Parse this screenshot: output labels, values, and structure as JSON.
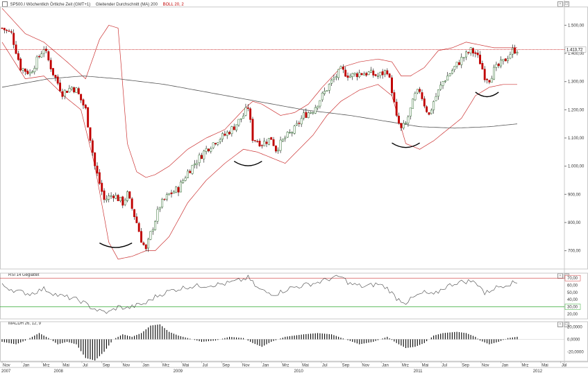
{
  "main_pane": {
    "symbol_label": "SP500.I Wöchentlich Örtliche Zeit (GMT+1)",
    "ma_label": "Gleitender Durchschnitt (MA) 200",
    "boll_label": "BOLL 20, 2",
    "last_price_label": "1.413,72"
  },
  "rsi_pane": {
    "label": "RSI 14 Geglättet",
    "upper_level_label": "70,00",
    "lower_level_label": "30,00"
  },
  "macd_pane": {
    "label": "MACDH 26, 12, 9"
  },
  "colors": {
    "up_candle": "#ffffff",
    "down_candle": "#c00000",
    "candle_outline": "#000000",
    "upper_band": "#cc3333",
    "lower_band": "#cc3333",
    "ma200": "#555555",
    "price_line": "#c00000",
    "rsi_line": "#444444",
    "rsi_upper": "#cc3333",
    "rsi_lower": "#33aa33",
    "annotation": "#000000"
  },
  "chart_data": [
    {
      "type": "candlestick",
      "title": "SP500.I Wöchentlich",
      "yaxis_ticks": [
        "1.500,00",
        "1.400,00",
        "1.300,00",
        "1.200,00",
        "1.100,00",
        "1.000,00",
        "900,00",
        "800,00",
        "700,00"
      ],
      "ylim": [
        640,
        1560
      ],
      "x_month_labels": [
        "Nov",
        "Jan",
        "Mrz",
        "Mai",
        "Jul",
        "Sep",
        "Nov",
        "Jan",
        "Mrz",
        "Mai",
        "Jul",
        "Sep",
        "Nov",
        "Jan",
        "Mrz",
        "Mai",
        "Jul",
        "Sep",
        "Nov",
        "Jan",
        "Mrz",
        "Mai",
        "Jul",
        "Sep",
        "Nov",
        "Jan",
        "Mrz",
        "Mai",
        "Jul"
      ],
      "x_year_labels": [
        "2007",
        "2008",
        "2009",
        "2010",
        "2011",
        "2012"
      ],
      "close_anchors": [
        [
          0,
          1490
        ],
        [
          4,
          1470
        ],
        [
          8,
          1350
        ],
        [
          12,
          1330
        ],
        [
          16,
          1390
        ],
        [
          18,
          1420
        ],
        [
          22,
          1330
        ],
        [
          26,
          1260
        ],
        [
          30,
          1280
        ],
        [
          32,
          1270
        ],
        [
          36,
          1200
        ],
        [
          40,
          1000
        ],
        [
          44,
          880
        ],
        [
          48,
          900
        ],
        [
          52,
          870
        ],
        [
          54,
          900
        ],
        [
          58,
          800
        ],
        [
          60,
          740
        ],
        [
          62,
          700
        ],
        [
          64,
          760
        ],
        [
          68,
          860
        ],
        [
          72,
          900
        ],
        [
          76,
          920
        ],
        [
          80,
          980
        ],
        [
          84,
          1020
        ],
        [
          88,
          1060
        ],
        [
          92,
          1090
        ],
        [
          96,
          1110
        ],
        [
          100,
          1140
        ],
        [
          104,
          1180
        ],
        [
          106,
          1210
        ],
        [
          108,
          1100
        ],
        [
          112,
          1080
        ],
        [
          116,
          1100
        ],
        [
          118,
          1060
        ],
        [
          122,
          1100
        ],
        [
          126,
          1130
        ],
        [
          130,
          1180
        ],
        [
          134,
          1200
        ],
        [
          138,
          1250
        ],
        [
          142,
          1300
        ],
        [
          146,
          1340
        ],
        [
          150,
          1320
        ],
        [
          154,
          1330
        ],
        [
          158,
          1330
        ],
        [
          162,
          1320
        ],
        [
          166,
          1340
        ],
        [
          168,
          1270
        ],
        [
          170,
          1170
        ],
        [
          172,
          1130
        ],
        [
          174,
          1150
        ],
        [
          176,
          1200
        ],
        [
          178,
          1250
        ],
        [
          180,
          1270
        ],
        [
          182,
          1220
        ],
        [
          184,
          1180
        ],
        [
          186,
          1230
        ],
        [
          190,
          1300
        ],
        [
          194,
          1340
        ],
        [
          198,
          1380
        ],
        [
          202,
          1410
        ],
        [
          204,
          1400
        ],
        [
          206,
          1370
        ],
        [
          208,
          1320
        ],
        [
          210,
          1310
        ],
        [
          212,
          1340
        ],
        [
          216,
          1370
        ],
        [
          220,
          1410
        ],
        [
          222,
          1413.72
        ]
      ],
      "upper_band_anchors": [
        [
          0,
          1560
        ],
        [
          10,
          1470
        ],
        [
          18,
          1440
        ],
        [
          28,
          1370
        ],
        [
          36,
          1310
        ],
        [
          42,
          1450
        ],
        [
          46,
          1500
        ],
        [
          50,
          1490
        ],
        [
          54,
          1080
        ],
        [
          58,
          980
        ],
        [
          62,
          960
        ],
        [
          66,
          970
        ],
        [
          72,
          1000
        ],
        [
          80,
          1060
        ],
        [
          88,
          1100
        ],
        [
          96,
          1130
        ],
        [
          104,
          1200
        ],
        [
          108,
          1230
        ],
        [
          112,
          1220
        ],
        [
          120,
          1180
        ],
        [
          126,
          1190
        ],
        [
          132,
          1220
        ],
        [
          138,
          1280
        ],
        [
          146,
          1350
        ],
        [
          154,
          1370
        ],
        [
          162,
          1380
        ],
        [
          168,
          1370
        ],
        [
          172,
          1320
        ],
        [
          176,
          1320
        ],
        [
          182,
          1350
        ],
        [
          188,
          1410
        ],
        [
          194,
          1420
        ],
        [
          200,
          1440
        ],
        [
          206,
          1430
        ],
        [
          212,
          1420
        ],
        [
          222,
          1420
        ]
      ],
      "lower_band_anchors": [
        [
          0,
          1440
        ],
        [
          10,
          1310
        ],
        [
          18,
          1320
        ],
        [
          28,
          1240
        ],
        [
          34,
          1200
        ],
        [
          40,
          1000
        ],
        [
          46,
          730
        ],
        [
          50,
          670
        ],
        [
          56,
          680
        ],
        [
          62,
          700
        ],
        [
          66,
          700
        ],
        [
          72,
          750
        ],
        [
          80,
          870
        ],
        [
          88,
          950
        ],
        [
          96,
          1010
        ],
        [
          104,
          1060
        ],
        [
          110,
          1050
        ],
        [
          116,
          1030
        ],
        [
          122,
          1010
        ],
        [
          128,
          1060
        ],
        [
          134,
          1110
        ],
        [
          140,
          1180
        ],
        [
          146,
          1230
        ],
        [
          154,
          1270
        ],
        [
          162,
          1290
        ],
        [
          168,
          1250
        ],
        [
          174,
          1080
        ],
        [
          180,
          1060
        ],
        [
          186,
          1090
        ],
        [
          192,
          1130
        ],
        [
          198,
          1170
        ],
        [
          204,
          1250
        ],
        [
          210,
          1280
        ],
        [
          216,
          1290
        ],
        [
          222,
          1290
        ]
      ],
      "ma200_anchors": [
        [
          0,
          1280
        ],
        [
          20,
          1310
        ],
        [
          35,
          1320
        ],
        [
          50,
          1310
        ],
        [
          70,
          1290
        ],
        [
          90,
          1260
        ],
        [
          110,
          1230
        ],
        [
          130,
          1200
        ],
        [
          150,
          1180
        ],
        [
          165,
          1160
        ],
        [
          180,
          1140
        ],
        [
          195,
          1135
        ],
        [
          210,
          1140
        ],
        [
          222,
          1150
        ]
      ],
      "annotations": [
        "bottom-arc-2009-03",
        "bottom-arc-2010-06",
        "bottom-arc-2011-09",
        "bottom-arc-2012-05"
      ]
    },
    {
      "type": "line",
      "title": "RSI 14 Geglättet",
      "yaxis_ticks": [
        "70,00",
        "60,00",
        "50,00",
        "40,00",
        "30,00",
        "20,00"
      ],
      "ylim": [
        15,
        75
      ],
      "levels": [
        70,
        30
      ],
      "anchors": [
        [
          0,
          60
        ],
        [
          6,
          52
        ],
        [
          12,
          48
        ],
        [
          18,
          55
        ],
        [
          24,
          46
        ],
        [
          30,
          42
        ],
        [
          34,
          38
        ],
        [
          38,
          30
        ],
        [
          42,
          24
        ],
        [
          46,
          22
        ],
        [
          50,
          30
        ],
        [
          54,
          28
        ],
        [
          58,
          32
        ],
        [
          62,
          35
        ],
        [
          66,
          44
        ],
        [
          72,
          52
        ],
        [
          80,
          58
        ],
        [
          88,
          60
        ],
        [
          96,
          62
        ],
        [
          104,
          68
        ],
        [
          106,
          71
        ],
        [
          110,
          56
        ],
        [
          114,
          50
        ],
        [
          118,
          48
        ],
        [
          124,
          56
        ],
        [
          130,
          60
        ],
        [
          136,
          64
        ],
        [
          142,
          70
        ],
        [
          146,
          72
        ],
        [
          150,
          62
        ],
        [
          156,
          58
        ],
        [
          162,
          62
        ],
        [
          166,
          56
        ],
        [
          170,
          42
        ],
        [
          174,
          36
        ],
        [
          178,
          44
        ],
        [
          182,
          50
        ],
        [
          186,
          46
        ],
        [
          190,
          56
        ],
        [
          196,
          64
        ],
        [
          202,
          66
        ],
        [
          206,
          60
        ],
        [
          208,
          48
        ],
        [
          212,
          56
        ],
        [
          218,
          62
        ],
        [
          222,
          64
        ]
      ]
    },
    {
      "type": "bar",
      "title": "MACDH 26, 12, 9",
      "yaxis_ticks": [
        "20,0000",
        "0,0000",
        "-20,0000"
      ],
      "ylim": [
        -34,
        26
      ],
      "anchors": [
        [
          0,
          -4
        ],
        [
          6,
          -8
        ],
        [
          10,
          -2
        ],
        [
          16,
          10
        ],
        [
          20,
          2
        ],
        [
          24,
          -8
        ],
        [
          28,
          -4
        ],
        [
          32,
          -8
        ],
        [
          36,
          -30
        ],
        [
          40,
          -34
        ],
        [
          44,
          -20
        ],
        [
          48,
          0
        ],
        [
          52,
          8
        ],
        [
          56,
          4
        ],
        [
          60,
          10
        ],
        [
          64,
          22
        ],
        [
          68,
          24
        ],
        [
          72,
          12
        ],
        [
          76,
          6
        ],
        [
          80,
          2
        ],
        [
          86,
          -4
        ],
        [
          92,
          -2
        ],
        [
          98,
          4
        ],
        [
          104,
          2
        ],
        [
          108,
          -6
        ],
        [
          112,
          -12
        ],
        [
          116,
          -4
        ],
        [
          122,
          4
        ],
        [
          130,
          8
        ],
        [
          136,
          10
        ],
        [
          142,
          8
        ],
        [
          148,
          0
        ],
        [
          154,
          -8
        ],
        [
          160,
          -4
        ],
        [
          166,
          4
        ],
        [
          170,
          -6
        ],
        [
          174,
          -14
        ],
        [
          178,
          -12
        ],
        [
          182,
          -6
        ],
        [
          186,
          6
        ],
        [
          190,
          10
        ],
        [
          196,
          12
        ],
        [
          200,
          10
        ],
        [
          204,
          4
        ],
        [
          206,
          -2
        ],
        [
          210,
          -8
        ],
        [
          214,
          -4
        ],
        [
          218,
          2
        ],
        [
          222,
          4
        ]
      ]
    }
  ]
}
